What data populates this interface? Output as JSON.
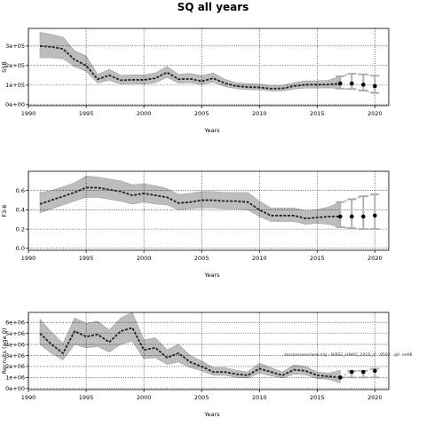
{
  "figure": {
    "title": "SQ all years",
    "watermark": "stockassessment.org - WBSS_HAWG_2018_sf - 9563 , git: ee98"
  },
  "colors": {
    "band": "#bdbdbd",
    "band_edge": "#9e9e9e",
    "line": "#222222",
    "forecast_marker": "#000000",
    "forecast_bar": "#a9a9a9"
  },
  "chart_data": [
    {
      "type": "line",
      "title": "",
      "xlabel": "Years",
      "ylabel": "SSB",
      "xlim": [
        1990,
        2021.2
      ],
      "ylim": [
        -5000,
        390000
      ],
      "grid": true,
      "x_ticks": [
        1990,
        1995,
        2000,
        2005,
        2010,
        2015,
        2020
      ],
      "x_tick_labels": [
        "1990",
        "1995",
        "2000",
        "2005",
        "2010",
        "2015",
        "2020"
      ],
      "y_ticks": [
        0,
        100000,
        200000,
        300000
      ],
      "y_tick_labels": [
        "0e+00",
        "1e+05",
        "2e+05",
        "3e+05"
      ],
      "series": [
        {
          "x": [
            1991,
            1992,
            1993,
            1994,
            1995,
            1996,
            1997,
            1998,
            1999,
            2000,
            2001,
            2002,
            2003,
            2004,
            2005,
            2006,
            2007,
            2008,
            2009,
            2010,
            2011,
            2012,
            2013,
            2014,
            2015,
            2016,
            2017
          ],
          "values": [
            300000,
            295000,
            285000,
            230000,
            200000,
            130000,
            150000,
            125000,
            127000,
            127000,
            135000,
            165000,
            130000,
            132000,
            120000,
            135000,
            110000,
            95000,
            90000,
            88000,
            82000,
            83000,
            95000,
            102000,
            102000,
            103000,
            108000
          ],
          "lower": [
            240000,
            240000,
            235000,
            195000,
            170000,
            110000,
            125000,
            105000,
            107000,
            105000,
            112000,
            140000,
            110000,
            112000,
            103000,
            115000,
            93000,
            82000,
            77000,
            75000,
            70000,
            70000,
            80000,
            85000,
            85000,
            86000,
            82000
          ],
          "upper": [
            370000,
            360000,
            345000,
            275000,
            250000,
            155000,
            180000,
            150000,
            152000,
            152000,
            162000,
            195000,
            155000,
            160000,
            148000,
            162000,
            130000,
            112000,
            107000,
            105000,
            97000,
            98000,
            112000,
            122000,
            122000,
            125000,
            145000
          ]
        }
      ],
      "forecast": {
        "x": [
          2017,
          2018,
          2019,
          2020
        ],
        "values": [
          108000,
          108000,
          102000,
          95000
        ],
        "lower": [
          82000,
          80000,
          72000,
          60000
        ],
        "upper": [
          145000,
          158000,
          155000,
          148000
        ]
      }
    },
    {
      "type": "line",
      "title": "",
      "xlabel": "Years",
      "ylabel": "F3-6",
      "xlim": [
        1990,
        2021.2
      ],
      "ylim": [
        -0.02,
        0.8
      ],
      "grid": true,
      "x_ticks": [
        1990,
        1995,
        2000,
        2005,
        2010,
        2015,
        2020
      ],
      "x_tick_labels": [
        "1990",
        "1995",
        "2000",
        "2005",
        "2010",
        "2015",
        "2020"
      ],
      "y_ticks": [
        0,
        0.2,
        0.4,
        0.6
      ],
      "y_tick_labels": [
        "0.0",
        "0.2",
        "0.4",
        "0.6"
      ],
      "series": [
        {
          "x": [
            1991,
            1992,
            1993,
            1994,
            1995,
            1996,
            1997,
            1998,
            1999,
            2000,
            2001,
            2002,
            2003,
            2004,
            2005,
            2006,
            2007,
            2008,
            2009,
            2010,
            2011,
            2012,
            2013,
            2014,
            2015,
            2016,
            2017
          ],
          "values": [
            0.46,
            0.5,
            0.54,
            0.58,
            0.63,
            0.63,
            0.61,
            0.59,
            0.55,
            0.57,
            0.55,
            0.53,
            0.47,
            0.48,
            0.5,
            0.5,
            0.49,
            0.49,
            0.48,
            0.4,
            0.34,
            0.34,
            0.34,
            0.31,
            0.32,
            0.33,
            0.33
          ],
          "lower": [
            0.37,
            0.41,
            0.45,
            0.49,
            0.53,
            0.53,
            0.51,
            0.49,
            0.46,
            0.48,
            0.46,
            0.45,
            0.4,
            0.41,
            0.42,
            0.42,
            0.41,
            0.41,
            0.4,
            0.33,
            0.28,
            0.28,
            0.28,
            0.25,
            0.26,
            0.25,
            0.22
          ],
          "upper": [
            0.58,
            0.6,
            0.64,
            0.68,
            0.75,
            0.74,
            0.72,
            0.7,
            0.66,
            0.67,
            0.65,
            0.62,
            0.56,
            0.57,
            0.59,
            0.59,
            0.58,
            0.58,
            0.58,
            0.49,
            0.42,
            0.42,
            0.42,
            0.39,
            0.4,
            0.43,
            0.48
          ]
        }
      ],
      "forecast": {
        "x": [
          2017,
          2018,
          2019,
          2020
        ],
        "values": [
          0.33,
          0.33,
          0.33,
          0.34
        ],
        "lower": [
          0.22,
          0.21,
          0.2,
          0.2
        ],
        "upper": [
          0.48,
          0.51,
          0.54,
          0.56
        ]
      }
    },
    {
      "type": "line",
      "title": "",
      "xlabel": "Years",
      "ylabel": "Recruits (age 0)",
      "xlim": [
        1990,
        2021.2
      ],
      "ylim": [
        -100000,
        6900000
      ],
      "grid": true,
      "x_ticks": [
        1990,
        1995,
        2000,
        2005,
        2010,
        2015,
        2020
      ],
      "x_tick_labels": [
        "1990",
        "1995",
        "2000",
        "2005",
        "2010",
        "2015",
        "2020"
      ],
      "y_ticks": [
        0,
        1000000,
        2000000,
        3000000,
        4000000,
        5000000,
        6000000
      ],
      "y_tick_labels": [
        "0e+00",
        "1e+06",
        "2e+06",
        "3e+06",
        "4e+06",
        "5e+06",
        "6e+06"
      ],
      "series": [
        {
          "x": [
            1991,
            1992,
            1993,
            1994,
            1995,
            1996,
            1997,
            1998,
            1999,
            2000,
            2001,
            2002,
            2003,
            2004,
            2005,
            2006,
            2007,
            2008,
            2009,
            2010,
            2011,
            2012,
            2013,
            2014,
            2015,
            2016,
            2017
          ],
          "values": [
            5000000,
            4000000,
            3200000,
            5200000,
            4700000,
            4900000,
            4200000,
            5200000,
            5500000,
            3500000,
            3700000,
            2800000,
            3200000,
            2400000,
            2000000,
            1500000,
            1500000,
            1300000,
            1200000,
            1800000,
            1500000,
            1200000,
            1700000,
            1600000,
            1200000,
            1100000,
            1000000
          ],
          "lower": [
            4000000,
            3200000,
            2600000,
            4000000,
            3700000,
            3800000,
            3300000,
            4000000,
            4300000,
            2700000,
            2800000,
            2200000,
            2400000,
            1900000,
            1600000,
            1200000,
            1200000,
            1000000,
            950000,
            1400000,
            1150000,
            950000,
            1300000,
            1250000,
            900000,
            850000,
            500000
          ],
          "upper": [
            6300000,
            5100000,
            4100000,
            6400000,
            5900000,
            6100000,
            5300000,
            6400000,
            6900000,
            4400000,
            4600000,
            3500000,
            4000000,
            3000000,
            2500000,
            1900000,
            1900000,
            1650000,
            1500000,
            2300000,
            1900000,
            1500000,
            2150000,
            2000000,
            1500000,
            1400000,
            1650000
          ]
        }
      ],
      "forecast": {
        "x": [
          2017,
          2018,
          2019,
          2020
        ],
        "values": [
          1000000,
          1500000,
          1500000,
          1600000
        ],
        "lower": [
          1000000,
          1000000,
          1000000,
          1000000
        ],
        "upper": [
          1000000,
          1600000,
          1600000,
          1800000
        ]
      }
    }
  ]
}
